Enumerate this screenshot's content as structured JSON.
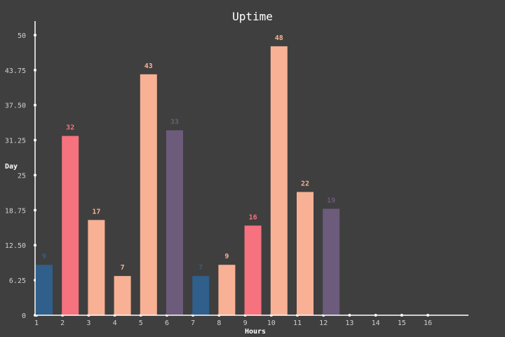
{
  "chart_data": {
    "type": "bar",
    "title": "Uptime",
    "xlabel": "Hours",
    "ylabel": "Day",
    "x_ticks": [
      "1",
      "2",
      "3",
      "4",
      "5",
      "6",
      "7",
      "8",
      "9",
      "10",
      "11",
      "12",
      "13",
      "14",
      "15",
      "16"
    ],
    "y_ticks": [
      "0",
      "6.25",
      "12.50",
      "18.75",
      "25",
      "31.25",
      "37.50",
      "43.75",
      "50"
    ],
    "ylim": [
      0,
      52.5
    ],
    "grid": false,
    "bars": [
      {
        "x": 1,
        "value": 9,
        "label": "9",
        "color": "#2f5f8a"
      },
      {
        "x": 2,
        "value": 32,
        "label": "32",
        "color": "#f5727e"
      },
      {
        "x": 3,
        "value": 17,
        "label": "17",
        "color": "#f8b195"
      },
      {
        "x": 4,
        "value": 7,
        "label": "7",
        "color": "#f8b195"
      },
      {
        "x": 5,
        "value": 43,
        "label": "43",
        "color": "#f8b195"
      },
      {
        "x": 6,
        "value": 33,
        "label": "33",
        "color": "#6c5b7b"
      },
      {
        "x": 7,
        "value": 7,
        "label": "7",
        "color": "#2f5f8a"
      },
      {
        "x": 8,
        "value": 9,
        "label": "9",
        "color": "#f8b195"
      },
      {
        "x": 9,
        "value": 16,
        "label": "16",
        "color": "#f5727e"
      },
      {
        "x": 10,
        "value": 48,
        "label": "48",
        "color": "#f8b195"
      },
      {
        "x": 11,
        "value": 22,
        "label": "22",
        "color": "#f8b195"
      },
      {
        "x": 12,
        "value": 19,
        "label": "19",
        "color": "#6c5b7b"
      }
    ],
    "colors": {
      "background": "#3f3f3f",
      "axis": "#ffffff"
    }
  }
}
